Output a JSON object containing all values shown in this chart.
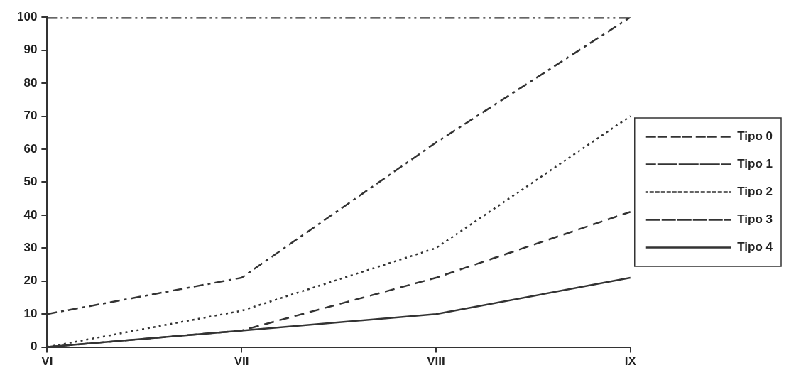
{
  "chart_data": {
    "type": "line",
    "categories": [
      "VI",
      "VII",
      "VIII",
      "IX"
    ],
    "series": [
      {
        "name": "Tipo 0",
        "color": "#333333",
        "line_style": "dashed",
        "values": [
          100,
          100,
          100,
          100
        ]
      },
      {
        "name": "Tipo 1",
        "color": "#333333",
        "line_style": "dashed",
        "values": [
          10,
          21,
          62,
          100
        ]
      },
      {
        "name": "Tipo 2",
        "color": "#333333",
        "line_style": "dotted",
        "values": [
          0,
          11,
          30,
          70
        ]
      },
      {
        "name": "Tipo 3",
        "color": "#333333",
        "line_style": "dashed",
        "values": [
          0,
          5,
          21,
          41
        ]
      },
      {
        "name": "Tipo 4",
        "color": "#333333",
        "line_style": "solid",
        "values": [
          0,
          5,
          10,
          21
        ]
      }
    ],
    "ylim": [
      0,
      100
    ],
    "yticks": [
      0,
      10,
      20,
      30,
      40,
      50,
      60,
      70,
      80,
      90,
      100
    ],
    "grid": false,
    "legend": "right",
    "marker": "none"
  }
}
